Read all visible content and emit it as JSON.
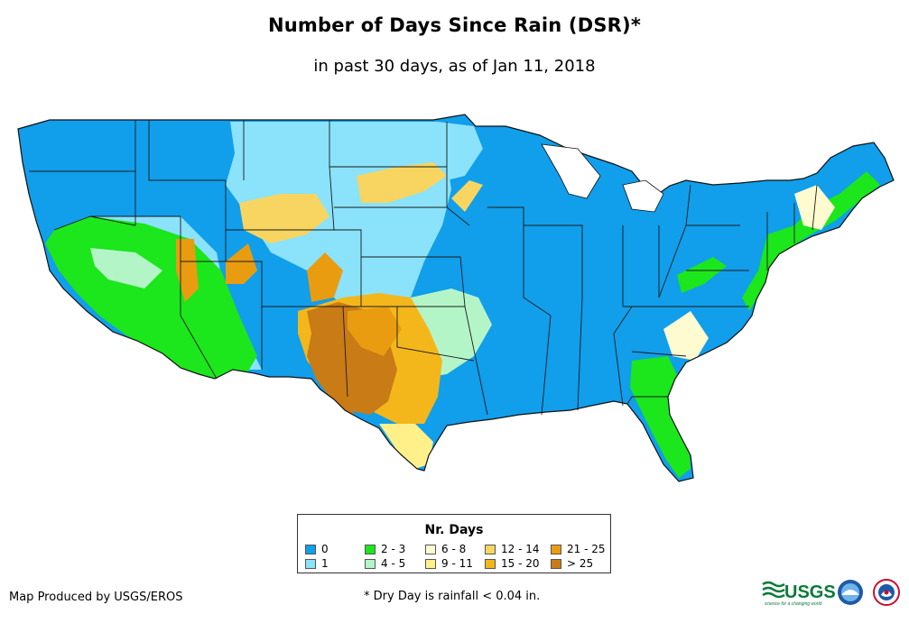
{
  "header": {
    "title": "Number of Days Since Rain (DSR)*",
    "subtitle": "in past 30 days, as of Jan 11, 2018"
  },
  "legend": {
    "title": "Nr. Days",
    "items": [
      {
        "label": "0",
        "color": "#119EEA"
      },
      {
        "label": "1",
        "color": "#8AE3FB"
      },
      {
        "label": "2 - 3",
        "color": "#1CE61C"
      },
      {
        "label": "4 - 5",
        "color": "#B4F5C8"
      },
      {
        "label": "6 - 8",
        "color": "#FFFBD0"
      },
      {
        "label": "9 - 11",
        "color": "#FFF08A"
      },
      {
        "label": "12 - 14",
        "color": "#F7D560"
      },
      {
        "label": "15 - 20",
        "color": "#F3B71B"
      },
      {
        "label": "21 - 25",
        "color": "#E99C10"
      },
      {
        "label": "> 25",
        "color": "#C97B16"
      }
    ]
  },
  "footer": {
    "credit": "Map Produced by USGS/EROS",
    "footnote": "* Dry Day is rainfall < 0.04 in.",
    "logo_text": "USGS",
    "logo_tagline": "science for a changing world",
    "logo_icons": [
      "usgs-logo",
      "noaa-logo",
      "nws-logo"
    ]
  }
}
